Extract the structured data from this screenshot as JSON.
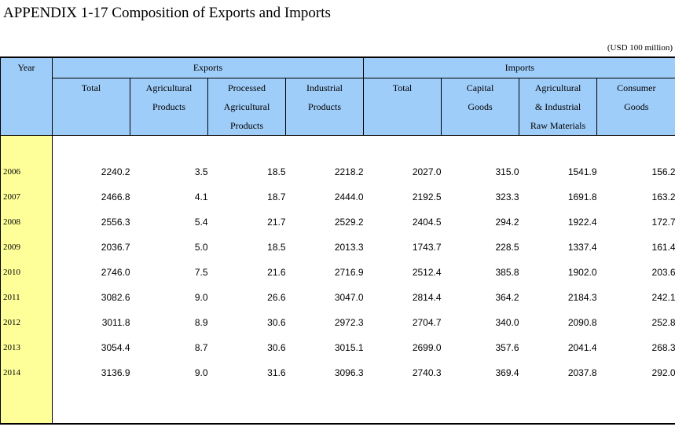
{
  "title": "APPENDIX 1-17  Composition of Exports and Imports",
  "unit": "(USD 100 million)",
  "header": {
    "year": "Year",
    "exports": "Exports",
    "imports": "Imports",
    "export_cols": [
      [
        "Total"
      ],
      [
        "Agricultural",
        "Products"
      ],
      [
        "Processed",
        "Agricultural",
        "Products"
      ],
      [
        "Industrial",
        "Products"
      ]
    ],
    "import_cols": [
      [
        "Total"
      ],
      [
        "Capital",
        "Goods"
      ],
      [
        "Agricultural",
        "& Industrial",
        "Raw Materials"
      ],
      [
        "Consumer",
        "Goods"
      ]
    ]
  },
  "rows": [
    {
      "year": "2006",
      "values": [
        "2240.2",
        "3.5",
        "18.5",
        "2218.2",
        "2027.0",
        "315.0",
        "1541.9",
        "156.2"
      ]
    },
    {
      "year": "2007",
      "values": [
        "2466.8",
        "4.1",
        "18.7",
        "2444.0",
        "2192.5",
        "323.3",
        "1691.8",
        "163.2"
      ]
    },
    {
      "year": "2008",
      "values": [
        "2556.3",
        "5.4",
        "21.7",
        "2529.2",
        "2404.5",
        "294.2",
        "1922.4",
        "172.7"
      ]
    },
    {
      "year": "2009",
      "values": [
        "2036.7",
        "5.0",
        "18.5",
        "2013.3",
        "1743.7",
        "228.5",
        "1337.4",
        "161.4"
      ]
    },
    {
      "year": "2010",
      "values": [
        "2746.0",
        "7.5",
        "21.6",
        "2716.9",
        "2512.4",
        "385.8",
        "1902.0",
        "203.6"
      ]
    },
    {
      "year": "2011",
      "values": [
        "3082.6",
        "9.0",
        "26.6",
        "3047.0",
        "2814.4",
        "364.2",
        "2184.3",
        "242.1"
      ]
    },
    {
      "year": "2012",
      "values": [
        "3011.8",
        "8.9",
        "30.6",
        "2972.3",
        "2704.7",
        "340.0",
        "2090.8",
        "252.8"
      ]
    },
    {
      "year": "2013",
      "values": [
        "3054.4",
        "8.7",
        "30.6",
        "3015.1",
        "2699.0",
        "357.6",
        "2041.4",
        "268.3"
      ]
    },
    {
      "year": "2014",
      "values": [
        "3136.9",
        "9.0",
        "31.6",
        "3096.3",
        "2740.3",
        "369.4",
        "2037.8",
        "292.0"
      ]
    }
  ]
}
